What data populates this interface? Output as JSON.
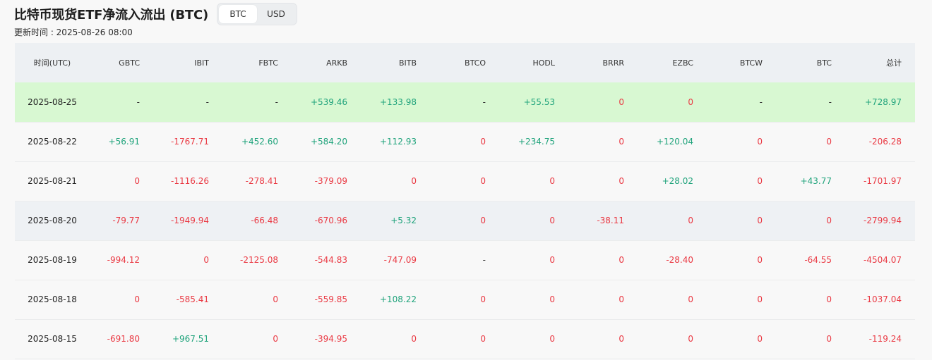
{
  "header": {
    "title": "比特币现货ETF净流入流出 (BTC)",
    "updated": "更新时间 : 2025-08-26 08:00",
    "toggle": [
      "BTC",
      "USD"
    ],
    "active": "BTC"
  },
  "table": {
    "columns": [
      "时间(UTC)",
      "GBTC",
      "IBIT",
      "FBTC",
      "ARKB",
      "BITB",
      "BTCO",
      "HODL",
      "BRRR",
      "EZBC",
      "BTCW",
      "BTC",
      "总计"
    ],
    "rows": [
      {
        "style": "hi",
        "cells": [
          "2025-08-25",
          "-",
          "-",
          "-",
          "+539.46",
          "+133.98",
          "-",
          "+55.53",
          "0",
          "0",
          "-",
          "-",
          "+728.97"
        ]
      },
      {
        "style": "plain",
        "cells": [
          "2025-08-22",
          "+56.91",
          "-1767.71",
          "+452.60",
          "+584.20",
          "+112.93",
          "0",
          "+234.75",
          "0",
          "+120.04",
          "0",
          "0",
          "-206.28"
        ]
      },
      {
        "style": "plain",
        "cells": [
          "2025-08-21",
          "0",
          "-1116.26",
          "-278.41",
          "-379.09",
          "0",
          "0",
          "0",
          "0",
          "+28.02",
          "0",
          "+43.77",
          "-1701.97"
        ]
      },
      {
        "style": "alt",
        "cells": [
          "2025-08-20",
          "-79.77",
          "-1949.94",
          "-66.48",
          "-670.96",
          "+5.32",
          "0",
          "0",
          "-38.11",
          "0",
          "0",
          "0",
          "-2799.94"
        ]
      },
      {
        "style": "plain",
        "cells": [
          "2025-08-19",
          "-994.12",
          "0",
          "-2125.08",
          "-544.83",
          "-747.09",
          "-",
          "0",
          "0",
          "-28.40",
          "0",
          "-64.55",
          "-4504.07"
        ]
      },
      {
        "style": "plain",
        "cells": [
          "2025-08-18",
          "0",
          "-585.41",
          "0",
          "-559.85",
          "+108.22",
          "0",
          "0",
          "0",
          "0",
          "0",
          "0",
          "-1037.04"
        ]
      },
      {
        "style": "plain",
        "cells": [
          "2025-08-15",
          "-691.80",
          "+967.51",
          "0",
          "-394.95",
          "0",
          "0",
          "0",
          "0",
          "0",
          "0",
          "0",
          "-119.24"
        ]
      }
    ]
  },
  "colors": {
    "positive": "#1fa37b",
    "negative": "#ea3943",
    "highlight_row": "#d8f8d2",
    "alt_row": "#eef1f4",
    "header_bg": "#edf0f3"
  }
}
